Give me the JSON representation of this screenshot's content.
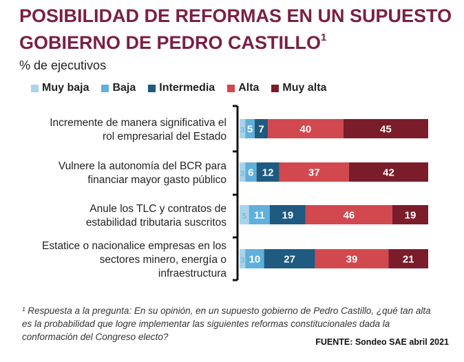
{
  "title": "POSIBILIDAD DE REFORMAS EN UN SUPUESTO GOBIERNO DE PEDRO CASTILLO",
  "title_sup": "1",
  "subtitle": "% de ejecutivos",
  "footnote": "¹ Respuesta a la pregunta: En su opinión, en un supuesto gobierno de Pedro Castillo, ¿qué tan alta es la probabilidad que logre implementar las siguientes reformas constitucionales dada la conformación del Congreso electo?",
  "source": "FUENTE: Sondeo SAE abril 2021",
  "chart_data": {
    "type": "bar",
    "orientation": "horizontal",
    "stacked": true,
    "legend_position": "top",
    "xlim": [
      0,
      100
    ],
    "categories": [
      [
        "Incremente de manera significativa el",
        "rol empresarial del Estado"
      ],
      [
        "Vulnere la autonomía del BCR para",
        "financiar mayor gasto público"
      ],
      [
        "Anule los TLC y contratos de",
        "estabilidad tributaria suscritos"
      ],
      [
        "Estatice o nacionalice empresas en los",
        "sectores minero, energía o",
        "infraestructura"
      ]
    ],
    "series": [
      {
        "name": "Muy baja",
        "color": "#a9d3ea",
        "values": [
          3,
          3,
          5,
          3
        ]
      },
      {
        "name": "Baja",
        "color": "#5fb0da",
        "values": [
          5,
          6,
          11,
          10
        ]
      },
      {
        "name": "Intermedia",
        "color": "#1f5a80",
        "values": [
          7,
          12,
          19,
          27
        ]
      },
      {
        "name": "Alta",
        "color": "#d2484f",
        "values": [
          40,
          37,
          46,
          39
        ]
      },
      {
        "name": "Muy alta",
        "color": "#7b1c2a",
        "values": [
          45,
          42,
          19,
          21
        ]
      }
    ]
  }
}
